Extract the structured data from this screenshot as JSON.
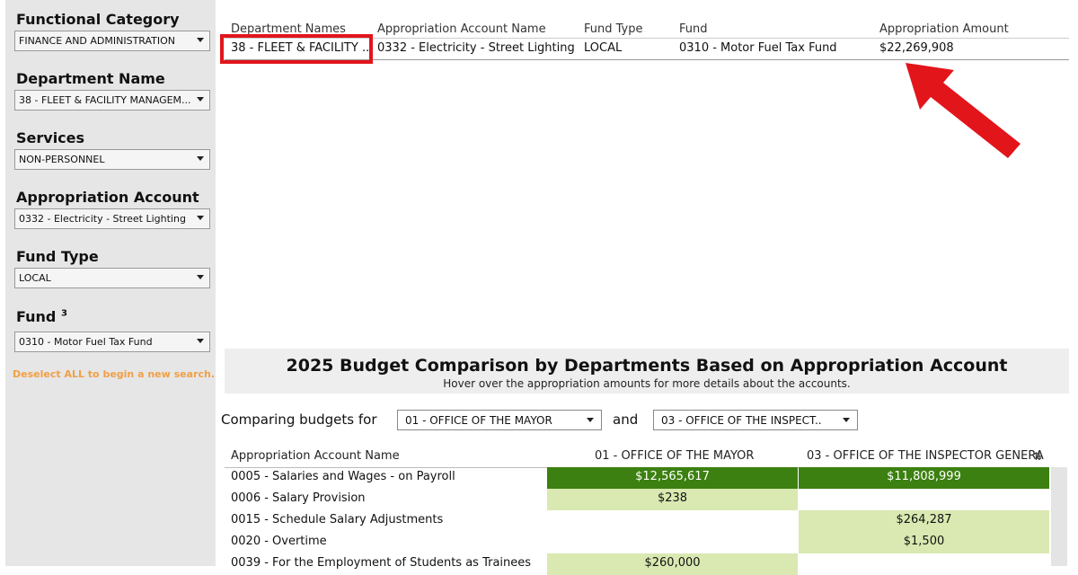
{
  "sidebar": {
    "filters": [
      {
        "label": "Functional Category",
        "value": "FINANCE AND ADMINISTRATION"
      },
      {
        "label": "Department Name",
        "value": "38 - FLEET & FACILITY MANAGEM..."
      },
      {
        "label": "Services",
        "value": "NON-PERSONNEL"
      },
      {
        "label": "Appropriation Account",
        "value": "0332 - Electricity - Street Lighting"
      },
      {
        "label": "Fund Type",
        "value": "LOCAL"
      },
      {
        "label": "Fund",
        "sup": "3",
        "value": "0310 - Motor Fuel Tax Fund"
      }
    ],
    "deselect_text": "Deselect ALL to begin a new search."
  },
  "top_table": {
    "headers": [
      "Department Names",
      "Appropriation Account Name",
      "Fund Type",
      "Fund",
      "Appropriation Amount"
    ],
    "row": [
      "38 - FLEET & FACILITY ..",
      "0332 - Electricity - Street Lighting",
      "LOCAL",
      "0310 - Motor Fuel Tax Fund",
      "$22,269,908"
    ]
  },
  "colors": {
    "highlight": "#e2151b",
    "dark_cell": "#3b8010",
    "light_cell": "#d9e9b1",
    "deselect": "#f0a046"
  },
  "banner": {
    "title": "2025 Budget Comparison by Departments Based on Appropriation Account",
    "subtitle": "Hover over the appropriation amounts for more details about the accounts."
  },
  "compare": {
    "label": "Comparing budgets for",
    "select_a": "01 - OFFICE OF THE MAYOR",
    "and_label": "and",
    "select_b": "03 - OFFICE OF THE INSPECT.."
  },
  "comparison_table": {
    "headers": [
      "Appropriation Account Name",
      "01 - OFFICE OF THE MAYOR",
      "03 - OFFICE OF THE INSPECTOR GENERA"
    ],
    "rows": [
      {
        "name": "0005 - Salaries and Wages - on Payroll",
        "a": "$12,565,617",
        "b": "$11,808,999"
      },
      {
        "name": "0006 - Salary Provision",
        "a": "$238",
        "b": ""
      },
      {
        "name": "0015 - Schedule Salary Adjustments",
        "a": "",
        "b": "$264,287"
      },
      {
        "name": "0020 - Overtime",
        "a": "",
        "b": "$1,500"
      },
      {
        "name": "0039 - For the Employment of Students as Trainees",
        "a": "$260,000",
        "b": ""
      }
    ]
  },
  "icons": {
    "sort": "sort-icon",
    "arrow": "red-arrow-icon",
    "caret": "chevron-down-icon"
  }
}
